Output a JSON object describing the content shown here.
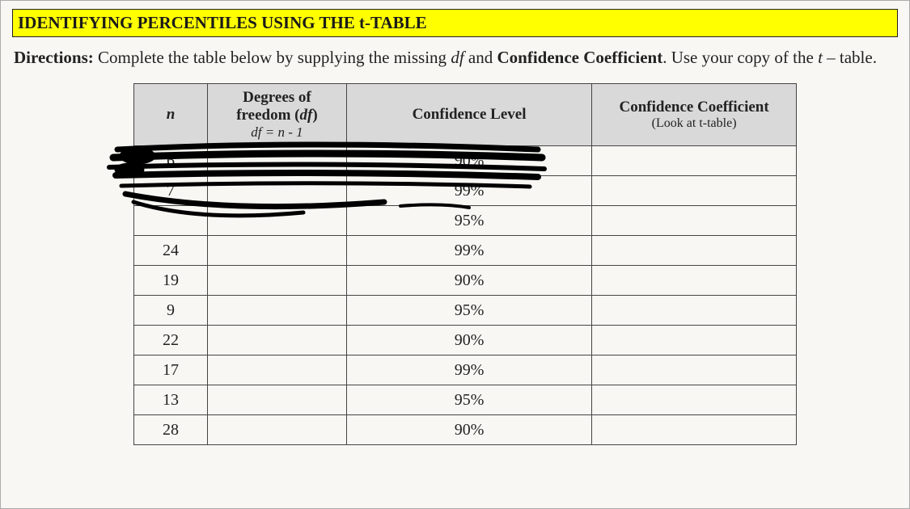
{
  "title": "IDENTIFYING PERCENTILES USING THE t-TABLE",
  "directions_prefix": "Directions:",
  "directions_body_1": " Complete the table below by supplying the missing ",
  "directions_df": "df",
  "directions_body_2": " and ",
  "directions_cc": "Confidence Coefficient",
  "directions_body_3": ". Use your copy of the ",
  "directions_t": "t",
  "directions_body_4": " – table.",
  "headers": {
    "n": "n",
    "df_line1": "Degrees of",
    "df_line2": "freedom (df)",
    "df_sub": "df = n - 1",
    "cl": "Confidence Level",
    "cc_line1": "Confidence Coefficient",
    "cc_sub": "(Look at t-table)"
  },
  "rows": [
    {
      "n": "6",
      "df": "",
      "cl": "90%",
      "cc": ""
    },
    {
      "n": "7",
      "df": "",
      "cl": "99%",
      "cc": ""
    },
    {
      "n": "",
      "df": "",
      "cl": "95%",
      "cc": ""
    },
    {
      "n": "24",
      "df": "",
      "cl": "99%",
      "cc": ""
    },
    {
      "n": "19",
      "df": "",
      "cl": "90%",
      "cc": ""
    },
    {
      "n": "9",
      "df": "",
      "cl": "95%",
      "cc": ""
    },
    {
      "n": "22",
      "df": "",
      "cl": "90%",
      "cc": ""
    },
    {
      "n": "17",
      "df": "",
      "cl": "99%",
      "cc": ""
    },
    {
      "n": "13",
      "df": "",
      "cl": "95%",
      "cc": ""
    },
    {
      "n": "28",
      "df": "",
      "cl": "90%",
      "cc": ""
    }
  ],
  "colors": {
    "title_bg": "#ffff00",
    "header_bg": "#d9d9d9",
    "border": "#444444",
    "scribble": "#000000",
    "page_bg": "#f8f7f3"
  }
}
